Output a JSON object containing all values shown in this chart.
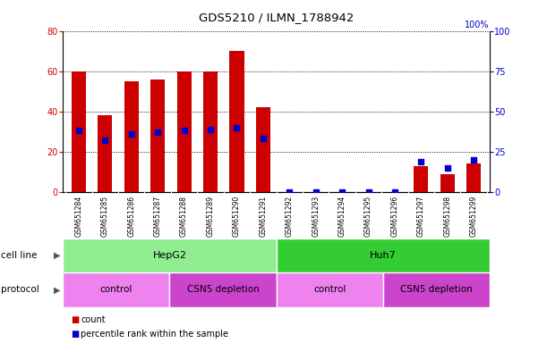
{
  "title": "GDS5210 / ILMN_1788942",
  "samples": [
    "GSM651284",
    "GSM651285",
    "GSM651286",
    "GSM651287",
    "GSM651288",
    "GSM651289",
    "GSM651290",
    "GSM651291",
    "GSM651292",
    "GSM651293",
    "GSM651294",
    "GSM651295",
    "GSM651296",
    "GSM651297",
    "GSM651298",
    "GSM651299"
  ],
  "counts": [
    60,
    38,
    55,
    56,
    60,
    60,
    70,
    42,
    0,
    0,
    0,
    0,
    0,
    13,
    9,
    14
  ],
  "percentile_ranks": [
    38,
    32,
    36,
    37,
    38,
    39,
    40,
    33,
    0,
    0,
    0,
    0,
    0,
    19,
    15,
    20
  ],
  "ylim_left": [
    0,
    80
  ],
  "ylim_right": [
    0,
    100
  ],
  "yticks_left": [
    0,
    20,
    40,
    60,
    80
  ],
  "yticks_right": [
    0,
    25,
    50,
    75,
    100
  ],
  "cell_line_groups": [
    {
      "label": "HepG2",
      "start": 0,
      "end": 8,
      "color": "#90EE90"
    },
    {
      "label": "Huh7",
      "start": 8,
      "end": 16,
      "color": "#33CC33"
    }
  ],
  "protocol_groups": [
    {
      "label": "control",
      "start": 0,
      "end": 4,
      "color": "#EE82EE"
    },
    {
      "label": "CSN5 depletion",
      "start": 4,
      "end": 8,
      "color": "#CC44CC"
    },
    {
      "label": "control",
      "start": 8,
      "end": 12,
      "color": "#EE82EE"
    },
    {
      "label": "CSN5 depletion",
      "start": 12,
      "end": 16,
      "color": "#CC44CC"
    }
  ],
  "bar_color": "#CC0000",
  "dot_color": "#0000CC",
  "bg_xtick": "#D3D3D3",
  "plot_bg": "#FFFFFF",
  "legend_items": [
    {
      "label": "count",
      "color": "#CC0000"
    },
    {
      "label": "percentile rank within the sample",
      "color": "#0000CC"
    }
  ]
}
